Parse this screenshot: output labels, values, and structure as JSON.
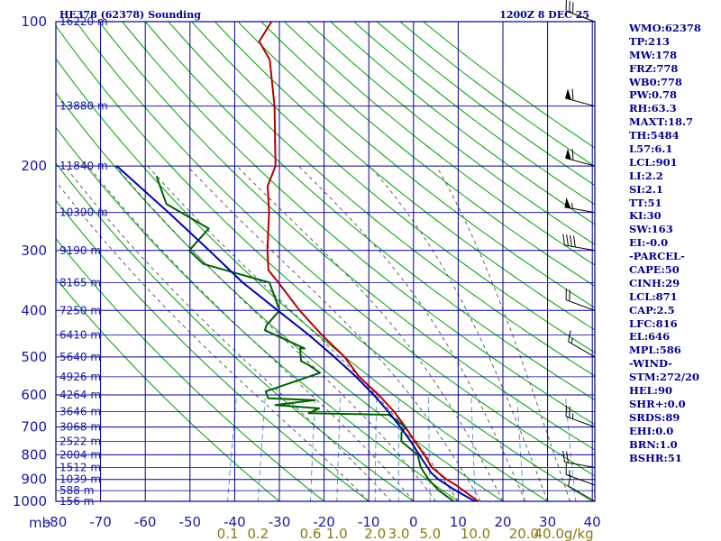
{
  "header": {
    "title": "HE378 (62378) Sounding",
    "time": "1200Z  8 DEC 25"
  },
  "indices": [
    "WMO:62378",
    "TP:213",
    "MW:178",
    "FRZ:778",
    "WB0:778",
    "PW:0.78",
    "RH:63.3",
    "MAXT:18.7",
    "TH:5484",
    "L57:6.1",
    "LCL:901",
    "LI:2.2",
    "SI:2.1",
    "TT:51",
    "KI:30",
    "SW:163",
    "EI:-0.0",
    "-PARCEL-",
    "CAPE:50",
    "CINH:29",
    "LCL:871",
    "CAP:2.5",
    "LFC:816",
    "EL:646",
    "MPL:586",
    "-WIND-",
    "STM:272/20",
    "HEL:90",
    "SHR+:0.0",
    "SRDS:89",
    "EHI:0.0",
    "BRN:1.0",
    "BSHR:51"
  ],
  "colors": {
    "grid": "#00008b",
    "dry_adiabat": "#00a000",
    "moist_adiabat": "#505050",
    "mixing_ratio": "#4a90d0",
    "temperature": "#b00000",
    "dewpoint": "#006000",
    "parcel": "#0000b0",
    "wind": "#000000"
  },
  "chart_data": {
    "type": "line",
    "chart_kind": "skew-T log-p sounding",
    "title": "HE378 (62378) Sounding",
    "x_axis": {
      "unit_label": "mb",
      "ticks": [
        -80,
        -70,
        -60,
        -50,
        -40,
        -30,
        -20,
        -10,
        0,
        10,
        20,
        30,
        40
      ],
      "tick_labels": [
        "-80",
        "-70",
        "-60",
        "-50",
        "-40",
        "-30",
        "-20",
        "-10",
        "0",
        "10",
        "20",
        "30",
        "40"
      ]
    },
    "y_axis": {
      "scale": "log",
      "range": [
        1000,
        100
      ],
      "ticks": [
        100,
        200,
        300,
        400,
        500,
        600,
        700,
        800,
        900,
        1000
      ],
      "tick_labels": [
        "100",
        "200",
        "300",
        "400",
        "500",
        "600",
        "700",
        "800",
        "900",
        "1000"
      ]
    },
    "height_labels": [
      {
        "p": 100,
        "label": "16220 m"
      },
      {
        "p": 150,
        "label": "13880 m"
      },
      {
        "p": 200,
        "label": "11840 m"
      },
      {
        "p": 250,
        "label": "10390 m"
      },
      {
        "p": 300,
        "label": "9190 m"
      },
      {
        "p": 350,
        "label": "8165 m"
      },
      {
        "p": 400,
        "label": "7250 m"
      },
      {
        "p": 450,
        "label": "6410 m"
      },
      {
        "p": 500,
        "label": "5640 m"
      },
      {
        "p": 550,
        "label": "4926 m"
      },
      {
        "p": 600,
        "label": "4264 m"
      },
      {
        "p": 650,
        "label": "3646 m"
      },
      {
        "p": 700,
        "label": "3068 m"
      },
      {
        "p": 750,
        "label": "2522 m"
      },
      {
        "p": 800,
        "label": "2004 m"
      },
      {
        "p": 850,
        "label": "1512 m"
      },
      {
        "p": 900,
        "label": "1039 m"
      },
      {
        "p": 950,
        "label": "588 m"
      },
      {
        "p": 1000,
        "label": "156 m"
      }
    ],
    "mixing_ratio_labels": [
      "0.1",
      "0.2",
      "0.6",
      "1.0",
      "2.0",
      "3.0",
      "5.0",
      "10.0",
      "20.0",
      "40.0g/kg"
    ],
    "mixing_ratio_values": [
      0.1,
      0.2,
      0.6,
      1.0,
      2.0,
      3.0,
      5.0,
      10.0,
      20.0,
      40.0
    ],
    "dry_adiabat_thetas_c": [
      -30,
      -20,
      -10,
      0,
      10,
      20,
      30,
      40,
      50,
      60,
      70,
      80,
      90,
      100,
      110,
      120,
      130,
      140,
      150,
      160,
      170,
      180,
      190,
      200
    ],
    "moist_adiabat_thetaw_c": [
      -10,
      -5,
      0,
      5,
      10,
      15,
      20,
      25,
      30,
      35
    ],
    "series": [
      {
        "name": "temperature",
        "points": [
          [
            1013,
            15.5
          ],
          [
            1000,
            14.5
          ],
          [
            950,
            10.5
          ],
          [
            925,
            8.5
          ],
          [
            900,
            6.0
          ],
          [
            850,
            2.0
          ],
          [
            800,
            -0.5
          ],
          [
            750,
            -3.5
          ],
          [
            700,
            -6.5
          ],
          [
            650,
            -10.0
          ],
          [
            600,
            -14.5
          ],
          [
            550,
            -20.0
          ],
          [
            500,
            -24.5
          ],
          [
            450,
            -31.0
          ],
          [
            400,
            -37.5
          ],
          [
            350,
            -44.0
          ],
          [
            330,
            -47.0
          ],
          [
            300,
            -48.5
          ],
          [
            250,
            -50.5
          ],
          [
            220,
            -52.5
          ],
          [
            200,
            -52.0
          ],
          [
            150,
            -56.0
          ],
          [
            120,
            -60.0
          ],
          [
            110,
            -63.5
          ],
          [
            100,
            -62.0
          ]
        ]
      },
      {
        "name": "dewpoint",
        "points": [
          [
            1013,
            9.5
          ],
          [
            1000,
            9.0
          ],
          [
            950,
            5.0
          ],
          [
            900,
            2.0
          ],
          [
            850,
            -0.5
          ],
          [
            800,
            -2.0
          ],
          [
            750,
            -6.5
          ],
          [
            720,
            -7.0
          ],
          [
            700,
            -6.5
          ],
          [
            660,
            -11.0
          ],
          [
            655,
            -29.0
          ],
          [
            640,
            -27.0
          ],
          [
            630,
            -37.0
          ],
          [
            615,
            -28.5
          ],
          [
            610,
            -39.0
          ],
          [
            590,
            -40.0
          ],
          [
            540,
            -29.0
          ],
          [
            520,
            -32.0
          ],
          [
            510,
            -34.0
          ],
          [
            480,
            -35.0
          ],
          [
            480,
            -34.0
          ],
          [
            440,
            -44.0
          ],
          [
            430,
            -44.0
          ],
          [
            400,
            -42.0
          ],
          [
            350,
            -46.0
          ],
          [
            320,
            -62.0
          ],
          [
            300,
            -66.0
          ],
          [
            270,
            -63.0
          ],
          [
            240,
            -74.0
          ],
          [
            210,
            -78.0
          ]
        ]
      },
      {
        "name": "parcel",
        "points": [
          [
            1013,
            15.0
          ],
          [
            950,
            8.8
          ],
          [
            900,
            4.2
          ],
          [
            871,
            2.1
          ],
          [
            816,
            -0.8
          ],
          [
            750,
            -4.4
          ],
          [
            700,
            -7.6
          ],
          [
            650,
            -11.3
          ],
          [
            600,
            -15.6
          ],
          [
            550,
            -20.7
          ],
          [
            500,
            -26.8
          ],
          [
            450,
            -33.9
          ],
          [
            400,
            -42.4
          ],
          [
            350,
            -52.0
          ],
          [
            300,
            -61.5
          ],
          [
            250,
            -73.0
          ],
          [
            200,
            -87.5
          ]
        ]
      }
    ],
    "wind_barbs": [
      {
        "p": 1000,
        "dir_deg": 300,
        "kt": 10
      },
      {
        "p": 925,
        "dir_deg": 290,
        "kt": 15
      },
      {
        "p": 850,
        "dir_deg": 280,
        "kt": 20
      },
      {
        "p": 700,
        "dir_deg": 290,
        "kt": 25
      },
      {
        "p": 500,
        "dir_deg": 300,
        "kt": 15
      },
      {
        "p": 400,
        "dir_deg": 290,
        "kt": 20
      },
      {
        "p": 300,
        "dir_deg": 280,
        "kt": 40
      },
      {
        "p": 250,
        "dir_deg": 280,
        "kt": 55
      },
      {
        "p": 200,
        "dir_deg": 285,
        "kt": 60
      },
      {
        "p": 150,
        "dir_deg": 285,
        "kt": 60
      },
      {
        "p": 100,
        "dir_deg": 290,
        "kt": 30
      }
    ]
  }
}
